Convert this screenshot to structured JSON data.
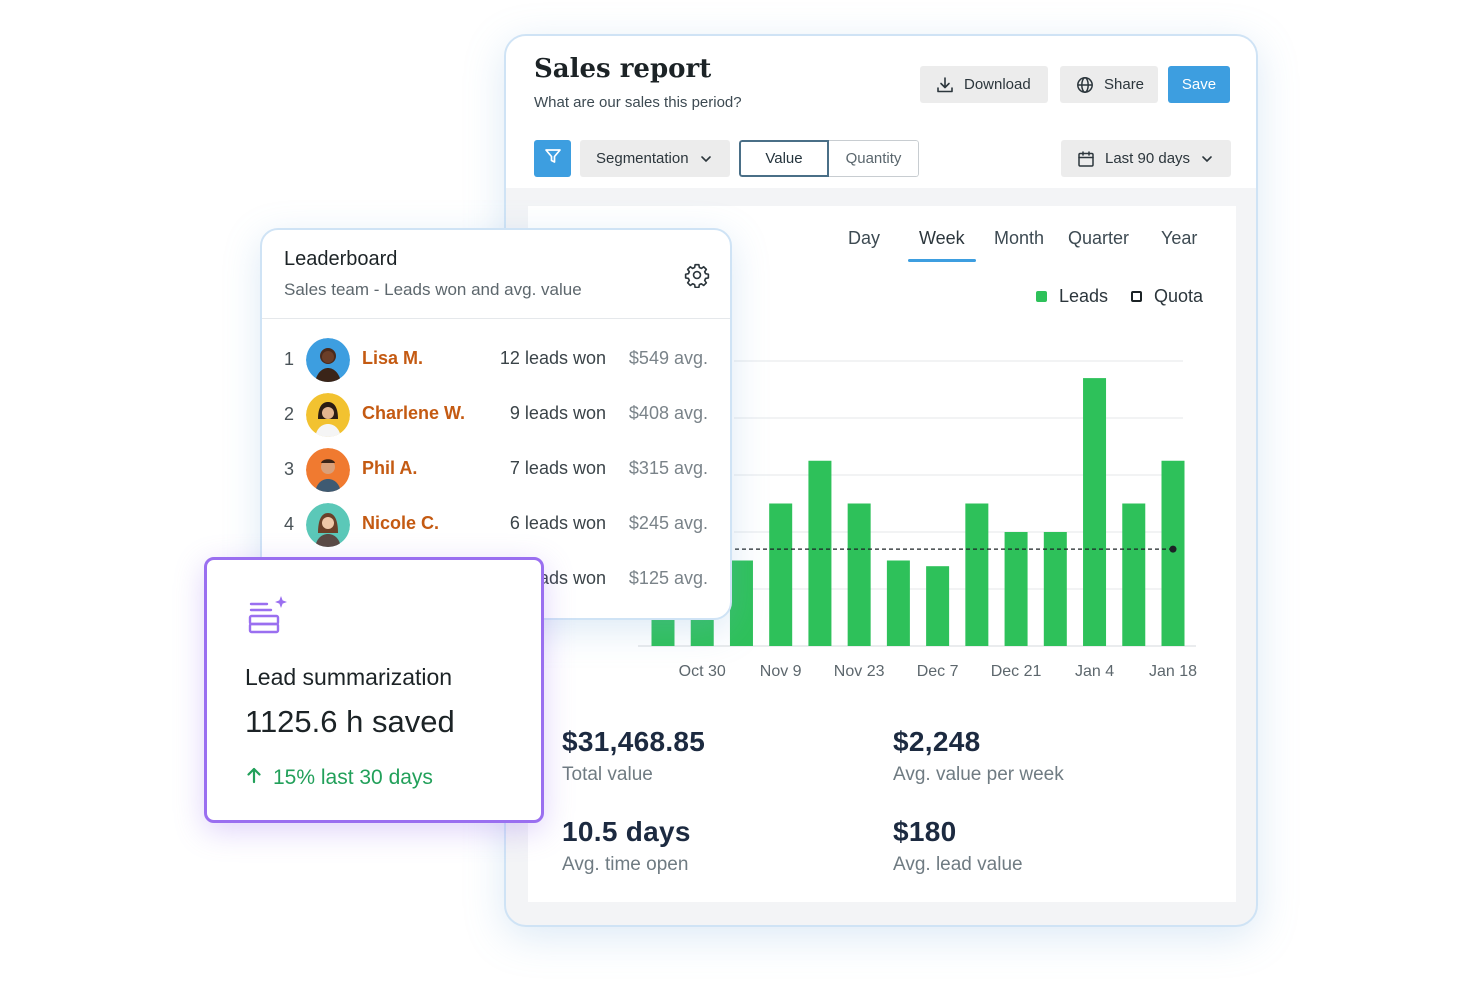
{
  "report": {
    "title": "Sales report",
    "subtitle": "What are our sales this period?",
    "download_label": "Download",
    "share_label": "Share",
    "save_label": "Save",
    "segmentation_label": "Segmentation",
    "toggle": {
      "value_label": "Value",
      "quantity_label": "Quantity",
      "selected": "Value"
    },
    "date_range_label": "Last 90 days",
    "period_tabs": [
      "Day",
      "Week",
      "Month",
      "Quarter",
      "Year"
    ],
    "active_period": "Week",
    "legend": {
      "leads": "Leads",
      "quota": "Quota"
    },
    "stats": [
      {
        "value": "$31,468.85",
        "label": "Total value"
      },
      {
        "value": "$2,248",
        "label": "Avg. value per week"
      },
      {
        "value": "10.5 days",
        "label": "Avg. time open"
      },
      {
        "value": "$180",
        "label": "Avg. lead value"
      }
    ]
  },
  "chart_data": {
    "type": "bar",
    "x_tick_labels": [
      "Oct 30",
      "Nov 9",
      "Nov 23",
      "Dec 7",
      "Dec 21",
      "Jan 4",
      "Jan 18"
    ],
    "series": [
      {
        "name": "Leads",
        "color": "#2ec15a",
        "values": [
          2,
          2,
          3,
          5,
          6.5,
          5,
          3,
          2.8,
          5,
          4,
          4,
          9.4,
          5,
          6.5
        ]
      },
      {
        "name": "Quota",
        "color": "#1c2326",
        "values": [
          3.4
        ]
      }
    ],
    "ylim": [
      0,
      10
    ],
    "grid": true
  },
  "leaderboard": {
    "title": "Leaderboard",
    "subtitle": "Sales team - Leads won and avg. value",
    "rows": [
      {
        "rank": "1",
        "name": "Lisa M.",
        "won": "12 leads won",
        "avg": "$549 avg.",
        "avatar_color": "#3d9ee0"
      },
      {
        "rank": "2",
        "name": "Charlene W.",
        "won": "9 leads won",
        "avg": "$408 avg.",
        "avatar_color": "#f2c230"
      },
      {
        "rank": "3",
        "name": "Phil A.",
        "won": "7 leads won",
        "avg": "$315 avg.",
        "avatar_color": "#f07a30"
      },
      {
        "rank": "4",
        "name": "Nicole C.",
        "won": "6 leads won",
        "avg": "$245 avg.",
        "avatar_color": "#5bc8b8"
      },
      {
        "rank": "",
        "name": "",
        "won": "ads won",
        "avg": "$125 avg.",
        "avatar_color": "#ffffff"
      }
    ]
  },
  "summary": {
    "title": "Lead summarization",
    "value": "1125.6 h saved",
    "trend": "15% last 30 days",
    "trend_color": "#22a05a"
  }
}
